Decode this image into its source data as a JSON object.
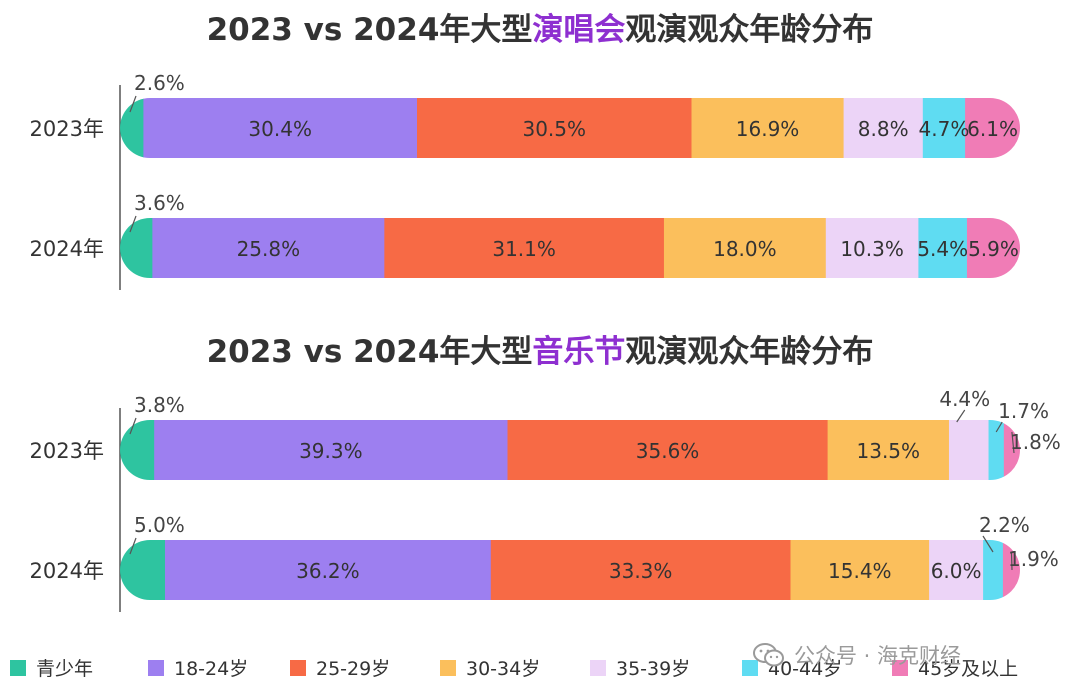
{
  "chart_data": [
    {
      "type": "bar",
      "orientation": "horizontal",
      "stacked": true,
      "normalized": "percent",
      "title": {
        "pre": "2023 vs 2024年大型",
        "highlight": "演唱会",
        "post": "观演观众年龄分布"
      },
      "categories": [
        "2023年",
        "2024年"
      ],
      "series": [
        {
          "name": "青少年",
          "values": [
            2.6,
            3.6
          ],
          "labels": [
            "2.6%",
            "3.6%"
          ]
        },
        {
          "name": "18-24岁",
          "values": [
            30.4,
            25.8
          ],
          "labels": [
            "30.4%",
            "25.8%"
          ]
        },
        {
          "name": "25-29岁",
          "values": [
            30.5,
            31.1
          ],
          "labels": [
            "30.5%",
            "31.1%"
          ]
        },
        {
          "name": "30-34岁",
          "values": [
            16.9,
            18.0
          ],
          "labels": [
            "16.9%",
            "18.0%"
          ]
        },
        {
          "name": "35-39岁",
          "values": [
            8.8,
            10.3
          ],
          "labels": [
            "8.8%",
            "10.3%"
          ]
        },
        {
          "name": "40-44岁",
          "values": [
            4.7,
            5.4
          ],
          "labels": [
            "4.7%",
            "5.4%"
          ]
        },
        {
          "name": "45岁及以上",
          "values": [
            6.1,
            5.9
          ],
          "labels": [
            "6.1%",
            "5.9%"
          ]
        }
      ]
    },
    {
      "type": "bar",
      "orientation": "horizontal",
      "stacked": true,
      "normalized": "percent",
      "title": {
        "pre": "2023 vs 2024年大型",
        "highlight": "音乐节",
        "post": "观演观众年龄分布"
      },
      "categories": [
        "2023年",
        "2024年"
      ],
      "series": [
        {
          "name": "青少年",
          "values": [
            3.8,
            5.0
          ],
          "labels": [
            "3.8%",
            "5.0%"
          ]
        },
        {
          "name": "18-24岁",
          "values": [
            39.3,
            36.2
          ],
          "labels": [
            "39.3%",
            "36.2%"
          ]
        },
        {
          "name": "25-29岁",
          "values": [
            35.6,
            33.3
          ],
          "labels": [
            "35.6%",
            "33.3%"
          ]
        },
        {
          "name": "30-34岁",
          "values": [
            13.5,
            15.4
          ],
          "labels": [
            "13.5%",
            "15.4%"
          ]
        },
        {
          "name": "35-39岁",
          "values": [
            4.4,
            6.0
          ],
          "labels": [
            "4.4%",
            "6.0%"
          ]
        },
        {
          "name": "40-44岁",
          "values": [
            1.7,
            2.2
          ],
          "labels": [
            "1.7%",
            "2.2%"
          ]
        },
        {
          "name": "45岁及以上",
          "values": [
            1.8,
            1.9
          ],
          "labels": [
            "1.8%",
            "1.9%"
          ]
        }
      ]
    }
  ],
  "legend": {
    "placement": "bottom",
    "items": [
      {
        "name": "青少年",
        "color": "#2ec4a0"
      },
      {
        "name": "18-24岁",
        "color": "#9d7ff0"
      },
      {
        "name": "25-29岁",
        "color": "#f76a45"
      },
      {
        "name": "30-34岁",
        "color": "#fbbf5c"
      },
      {
        "name": "35-39岁",
        "color": "#ecd4f7"
      },
      {
        "name": "40-44岁",
        "color": "#5fdcf2"
      },
      {
        "name": "45岁及以上",
        "color": "#f07cb6"
      }
    ]
  },
  "watermark": {
    "text": "公众号 · 海克财经",
    "icon": "wechat-icon"
  }
}
